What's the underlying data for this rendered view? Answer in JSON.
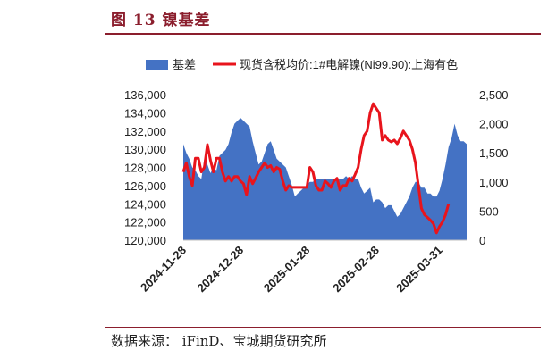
{
  "figure": {
    "title": "图 13    镍基差",
    "source": "数据来源：  iFinD、宝城期货研究所"
  },
  "colors": {
    "basis_fill": "#4472c4",
    "price_line": "#e8141c",
    "title": "#8b1e2d"
  },
  "chart_data": {
    "type": "area+line",
    "legend_position": "top",
    "grid": false,
    "x_tick_labels": [
      "2024-11-28",
      "2024-12-28",
      "2025-01-28",
      "2025-02-28",
      "2025-03-31"
    ],
    "x_range": [
      0,
      94
    ],
    "x_ticks": [
      0,
      19,
      41,
      64,
      85
    ],
    "series": [
      {
        "name": "基差",
        "type": "area",
        "axis": "right",
        "values": [
          1650,
          1500,
          1400,
          1250,
          1200,
          1100,
          1050,
          1400,
          1300,
          1150,
          1250,
          1200,
          1450,
          1500,
          1550,
          1650,
          1850,
          2000,
          2050,
          2100,
          2050,
          2000,
          1950,
          1700,
          1500,
          1300,
          1350,
          1500,
          1650,
          1700,
          1550,
          1400,
          1350,
          1300,
          1250,
          1100,
          950,
          750,
          800,
          850,
          900,
          950,
          1000,
          1000,
          1050,
          1050,
          1050,
          1050,
          1050,
          1050,
          1050,
          1050,
          1050,
          1050,
          1100,
          1050,
          1100,
          1050,
          1050,
          900,
          800,
          850,
          900,
          650,
          700,
          700,
          650,
          550,
          600,
          600,
          500,
          400,
          450,
          550,
          650,
          750,
          900,
          1000,
          1000,
          900,
          900,
          800,
          800,
          750,
          750,
          850,
          1050,
          1300,
          1600,
          1750,
          2000,
          1800,
          1700,
          1700,
          1650
        ]
      },
      {
        "name": "现货含税均价:1#电解镍(Ni99.90):上海有色",
        "type": "line",
        "axis": "left",
        "values": [
          127500,
          128500,
          127000,
          126000,
          129000,
          129000,
          127500,
          128000,
          130500,
          128800,
          127500,
          129000,
          129000,
          127500,
          126500,
          127000,
          126500,
          127000,
          127000,
          126500,
          126200,
          125000,
          127000,
          126200,
          126800,
          127500,
          128000,
          128500,
          128000,
          128200,
          127500,
          128000,
          127800,
          126500,
          125500,
          126000,
          125800,
          125800,
          125800,
          125800,
          125800,
          125800,
          128000,
          127500,
          126000,
          125500,
          125500,
          126500,
          126200,
          125800,
          126500,
          126800,
          125500,
          126000,
          126000,
          126800,
          126500,
          127200,
          128000,
          130000,
          131500,
          132000,
          134000,
          135000,
          134500,
          134000,
          131000,
          131500,
          131000,
          130800,
          131000,
          130600,
          131200,
          132000,
          131500,
          131000,
          130000,
          128500,
          126000,
          123500,
          122800,
          122500,
          122200,
          121800,
          120800,
          121500,
          122000,
          122800,
          124000
        ]
      }
    ],
    "y_left": {
      "min": 120000,
      "max": 136000,
      "ticks": [
        "120,000",
        "122,000",
        "124,000",
        "126,000",
        "128,000",
        "130,000",
        "132,000",
        "134,000",
        "136,000"
      ]
    },
    "y_right": {
      "min": 0,
      "max": 2500,
      "ticks": [
        "0",
        "500",
        "1,000",
        "1,500",
        "2,000",
        "2,500"
      ]
    }
  }
}
